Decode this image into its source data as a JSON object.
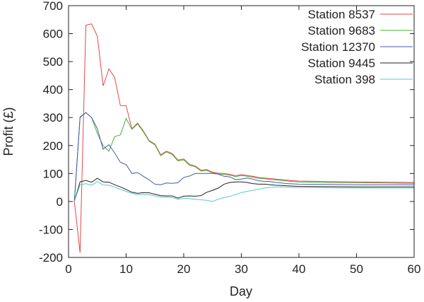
{
  "chart_data": {
    "type": "line",
    "title": "",
    "xlabel": "Day",
    "ylabel": "Profit (£)",
    "xlim": [
      0,
      60
    ],
    "ylim": [
      -200,
      700
    ],
    "xticks": [
      "0",
      "10",
      "20",
      "30",
      "40",
      "50",
      "60"
    ],
    "yticks": [
      "-200",
      "-100",
      "0",
      "100",
      "200",
      "300",
      "400",
      "500",
      "600",
      "700"
    ],
    "legend_position": "top-right",
    "x": [
      1,
      2,
      3,
      4,
      5,
      6,
      7,
      8,
      9,
      10,
      11,
      12,
      13,
      14,
      15,
      16,
      17,
      18,
      19,
      20,
      21,
      22,
      23,
      24,
      25,
      26,
      27,
      28,
      29,
      30,
      31,
      32,
      33,
      34,
      35,
      36,
      37,
      38,
      39,
      40,
      45,
      50,
      55,
      60
    ],
    "series": [
      {
        "name": "Station 8537",
        "color": "#e0484a",
        "values": [
          0,
          -183,
          630,
          635,
          590,
          413,
          474,
          444,
          343,
          342,
          260,
          280,
          252,
          218,
          205,
          167,
          180,
          171,
          148,
          152,
          133,
          127,
          112,
          114,
          105,
          101,
          100,
          97,
          92,
          96,
          93,
          90,
          86,
          84,
          82,
          80,
          78,
          76,
          74,
          73,
          71,
          70,
          69,
          68
        ]
      },
      {
        "name": "Station 9683",
        "color": "#4caf3a",
        "values": [
          0,
          300,
          318,
          300,
          243,
          200,
          180,
          232,
          238,
          297,
          258,
          277,
          249,
          215,
          202,
          164,
          177,
          168,
          145,
          149,
          130,
          124,
          109,
          111,
          102,
          98,
          97,
          94,
          89,
          93,
          90,
          87,
          83,
          81,
          79,
          77,
          75,
          73,
          71,
          70,
          68,
          67,
          66,
          65
        ]
      },
      {
        "name": "Station 12370",
        "color": "#4a55b0",
        "values": [
          0,
          302,
          318,
          300,
          260,
          187,
          203,
          174,
          140,
          132,
          100,
          103,
          90,
          77,
          62,
          60,
          66,
          65,
          67,
          86,
          91,
          100,
          100,
          100,
          100,
          98,
          90,
          88,
          78,
          80,
          84,
          80,
          74,
          72,
          71,
          68,
          66,
          64,
          63,
          62,
          61,
          60,
          60,
          60
        ]
      },
      {
        "name": "Station 9445",
        "color": "#222222",
        "values": [
          0,
          70,
          75,
          69,
          83,
          70,
          69,
          60,
          52,
          43,
          33,
          29,
          32,
          31,
          26,
          21,
          20,
          20,
          12,
          19,
          20,
          19,
          21,
          33,
          40,
          48,
          62,
          68,
          70,
          70,
          68,
          64,
          62,
          62,
          60,
          58,
          57,
          56,
          55,
          54,
          53,
          52,
          52,
          52
        ]
      },
      {
        "name": "Station 398",
        "color": "#5cc8c8",
        "values": [
          0,
          60,
          64,
          58,
          71,
          59,
          58,
          51,
          43,
          36,
          29,
          24,
          26,
          24,
          20,
          16,
          16,
          14,
          8,
          11,
          10,
          8,
          6,
          4,
          0,
          8,
          14,
          18,
          25,
          32,
          36,
          40,
          44,
          48,
          50,
          52,
          52,
          51,
          50,
          50,
          49,
          48,
          48,
          48
        ]
      }
    ]
  }
}
